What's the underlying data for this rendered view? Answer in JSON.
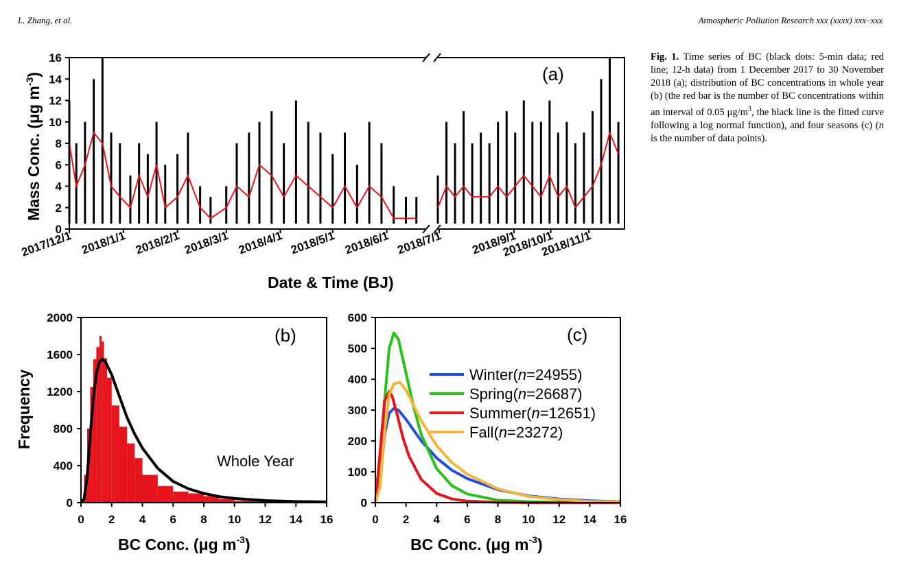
{
  "header": {
    "left": "L. Zhang, et al.",
    "right": "Atmospheric Pollution Research xxx (xxxx) xxx–xxx"
  },
  "caption": {
    "label": "Fig. 1.",
    "part1": " Time series of BC (black dots: 5-min data; red line; 12-h data) from 1 December 2017 to 30 November 2018 (a); distribution of BC concentrations in whole year (b) (the red bar is the number of BC concentrations within an interval of 0.05 μg/m",
    "sup": "3",
    "part2": ", the black line is the fitted curve following a log normal function), and four seasons (c) (",
    "n": "n",
    "part3": " is the number of data points)."
  },
  "colors": {
    "black": "#000000",
    "red": "#e8141b",
    "winter": "#1f4fe0",
    "spring": "#27c21a",
    "summer": "#e8141b",
    "fall": "#f4b43e"
  },
  "chart_data": [
    {
      "id": "a",
      "type": "scatter",
      "panel_label": "(a)",
      "ylabel": "Mass Conc. (μg m",
      "ylabel_sup": "-3",
      "ylabel_end": ")",
      "xlabel": "Date & Time (BJ)",
      "ylim": [
        0,
        16
      ],
      "yticks": [
        0,
        2,
        4,
        6,
        8,
        10,
        12,
        14,
        16
      ],
      "xlim": [
        "2017-12-01",
        "2018-11-30"
      ],
      "axis_break": "between 2018/6/1 and 2018/7/1",
      "xticks": [
        "2017/12/1",
        "2018/1/1",
        "2018/2/1",
        "2018/3/1",
        "2018/4/1",
        "2018/5/1",
        "2018/6/1",
        "2018/7/1",
        "2018/9/1",
        "2018/10/1",
        "2018/11/1"
      ],
      "series": [
        {
          "name": "5-min data",
          "color": "#000000",
          "x": [
            "2017-12-01",
            "2017-12-05",
            "2017-12-10",
            "2017-12-15",
            "2017-12-20",
            "2017-12-25",
            "2017-12-30",
            "2018-01-05",
            "2018-01-10",
            "2018-01-15",
            "2018-01-20",
            "2018-01-25",
            "2018-02-01",
            "2018-02-07",
            "2018-02-14",
            "2018-02-20",
            "2018-03-01",
            "2018-03-07",
            "2018-03-14",
            "2018-03-20",
            "2018-03-27",
            "2018-04-03",
            "2018-04-10",
            "2018-04-17",
            "2018-04-24",
            "2018-05-01",
            "2018-05-08",
            "2018-05-15",
            "2018-05-22",
            "2018-05-29",
            "2018-06-05",
            "2018-06-12",
            "2018-06-18",
            "2018-07-01",
            "2018-07-08",
            "2018-07-15",
            "2018-07-22",
            "2018-07-29",
            "2018-08-05",
            "2018-08-12",
            "2018-08-19",
            "2018-08-26",
            "2018-09-02",
            "2018-09-09",
            "2018-09-16",
            "2018-09-23",
            "2018-09-30",
            "2018-10-07",
            "2018-10-14",
            "2018-10-21",
            "2018-10-28",
            "2018-11-04",
            "2018-11-11",
            "2018-11-18",
            "2018-11-25"
          ],
          "y": [
            12,
            8,
            10,
            14,
            16,
            9,
            8,
            5,
            8,
            7,
            10,
            6,
            7,
            9,
            4,
            3,
            4,
            8,
            9,
            10,
            11,
            8,
            12,
            10,
            9,
            7,
            9,
            6,
            10,
            8,
            4,
            3,
            3,
            5,
            10,
            8,
            11,
            8,
            9,
            8,
            10,
            11,
            9,
            12,
            10,
            10,
            12,
            9,
            10,
            8,
            9,
            11,
            14,
            16,
            10
          ]
        },
        {
          "name": "12-h data",
          "color": "#e8141b",
          "x": [
            "2017-12-01",
            "2017-12-05",
            "2017-12-10",
            "2017-12-15",
            "2017-12-20",
            "2017-12-25",
            "2017-12-30",
            "2018-01-05",
            "2018-01-10",
            "2018-01-15",
            "2018-01-20",
            "2018-01-25",
            "2018-02-01",
            "2018-02-07",
            "2018-02-14",
            "2018-02-20",
            "2018-03-01",
            "2018-03-07",
            "2018-03-14",
            "2018-03-20",
            "2018-03-27",
            "2018-04-03",
            "2018-04-10",
            "2018-04-17",
            "2018-04-24",
            "2018-05-01",
            "2018-05-08",
            "2018-05-15",
            "2018-05-22",
            "2018-05-29",
            "2018-06-05",
            "2018-06-12",
            "2018-06-18",
            "2018-07-01",
            "2018-07-08",
            "2018-07-15",
            "2018-07-22",
            "2018-07-29",
            "2018-08-05",
            "2018-08-12",
            "2018-08-19",
            "2018-08-26",
            "2018-09-02",
            "2018-09-09",
            "2018-09-16",
            "2018-09-23",
            "2018-09-30",
            "2018-10-07",
            "2018-10-14",
            "2018-10-21",
            "2018-10-28",
            "2018-11-04",
            "2018-11-11",
            "2018-11-18",
            "2018-11-25"
          ],
          "y": [
            8,
            4,
            6,
            9,
            8,
            4,
            3,
            2,
            5,
            3,
            6,
            2,
            3,
            5,
            2,
            1,
            2,
            4,
            3,
            6,
            5,
            3,
            5,
            4,
            3,
            2,
            4,
            2,
            4,
            3,
            1,
            1,
            1,
            2,
            4,
            3,
            4,
            3,
            3,
            3,
            4,
            3,
            4,
            5,
            4,
            3,
            5,
            3,
            4,
            2,
            3,
            4,
            6,
            9,
            7
          ]
        }
      ]
    },
    {
      "id": "b",
      "type": "bar",
      "panel_label": "(b)",
      "annotation": "Whole Year",
      "ylabel": "Frequency",
      "xlabel": "BC Conc. (μg m",
      "xlabel_sup": "-3",
      "xlabel_end": ")",
      "xlim": [
        0,
        16
      ],
      "ylim": [
        0,
        2000
      ],
      "xticks": [
        0,
        2,
        4,
        6,
        8,
        10,
        12,
        14,
        16
      ],
      "yticks": [
        0,
        400,
        800,
        1200,
        1600,
        2000
      ],
      "histogram": {
        "color": "#e8141b",
        "x": [
          0.2,
          0.4,
          0.6,
          0.8,
          1.0,
          1.2,
          1.35,
          1.5,
          1.7,
          2.0,
          2.5,
          3.0,
          3.5,
          4.0,
          5.0,
          6.0,
          7.0,
          8.0,
          9.0,
          10.0,
          12.0,
          14.0,
          16.0
        ],
        "y": [
          40,
          300,
          800,
          1250,
          1550,
          1680,
          1800,
          1740,
          1560,
          1350,
          1050,
          820,
          640,
          480,
          300,
          180,
          120,
          100,
          70,
          40,
          20,
          10,
          5
        ]
      },
      "fit": {
        "color": "#000000",
        "x": [
          0,
          0.2,
          0.4,
          0.6,
          0.8,
          1.0,
          1.2,
          1.4,
          1.6,
          2.0,
          2.5,
          3.0,
          3.5,
          4.0,
          5.0,
          6.0,
          7.0,
          8.0,
          9.0,
          10.0,
          12.0,
          14.0,
          16.0
        ],
        "y": [
          0,
          40,
          280,
          720,
          1120,
          1400,
          1520,
          1550,
          1520,
          1380,
          1150,
          920,
          740,
          590,
          370,
          230,
          150,
          100,
          65,
          45,
          22,
          12,
          8
        ]
      }
    },
    {
      "id": "c",
      "type": "line",
      "panel_label": "(c)",
      "xlabel": "BC Conc. (μg m",
      "xlabel_sup": "-3",
      "xlabel_end": ")",
      "xlim": [
        0,
        16
      ],
      "ylim": [
        0,
        600
      ],
      "xticks": [
        0,
        2,
        4,
        6,
        8,
        10,
        12,
        14,
        16
      ],
      "yticks": [
        0,
        100,
        200,
        300,
        400,
        500,
        600
      ],
      "legend_position": "center-right",
      "series": [
        {
          "name": "Winter",
          "n": "24955",
          "color": "#1f4fe0",
          "x": [
            0,
            0.3,
            0.6,
            0.9,
            1.2,
            1.5,
            2.0,
            3.0,
            4.0,
            5.0,
            6.0,
            8.0,
            10.0,
            12.0,
            14.0,
            16.0
          ],
          "y": [
            0,
            60,
            220,
            290,
            305,
            300,
            270,
            200,
            145,
            105,
            78,
            42,
            22,
            12,
            6,
            3
          ]
        },
        {
          "name": "Spring",
          "n": "26687",
          "color": "#27c21a",
          "x": [
            0,
            0.3,
            0.6,
            0.9,
            1.2,
            1.5,
            2.0,
            2.5,
            3.0,
            4.0,
            5.0,
            6.0,
            8.0,
            10.0,
            12.0,
            16.0
          ],
          "y": [
            0,
            70,
            330,
            500,
            550,
            530,
            420,
            310,
            220,
            110,
            55,
            28,
            8,
            3,
            1,
            0
          ]
        },
        {
          "name": "Summer",
          "n": "12651",
          "color": "#e8141b",
          "x": [
            0,
            0.3,
            0.6,
            0.9,
            1.1,
            1.4,
            1.8,
            2.2,
            3.0,
            4.0,
            5.0,
            6.0,
            8.0,
            10.0,
            16.0
          ],
          "y": [
            0,
            160,
            330,
            360,
            345,
            290,
            210,
            150,
            75,
            30,
            12,
            5,
            1,
            0,
            0
          ]
        },
        {
          "name": "Fall",
          "n": "23272",
          "color": "#f4b43e",
          "x": [
            0,
            0.3,
            0.6,
            0.9,
            1.2,
            1.6,
            2.0,
            2.5,
            3.0,
            4.0,
            5.0,
            6.0,
            8.0,
            10.0,
            12.0,
            14.0,
            16.0
          ],
          "y": [
            0,
            50,
            230,
            350,
            385,
            390,
            365,
            315,
            265,
            185,
            130,
            92,
            45,
            20,
            10,
            4,
            2
          ]
        }
      ]
    }
  ]
}
